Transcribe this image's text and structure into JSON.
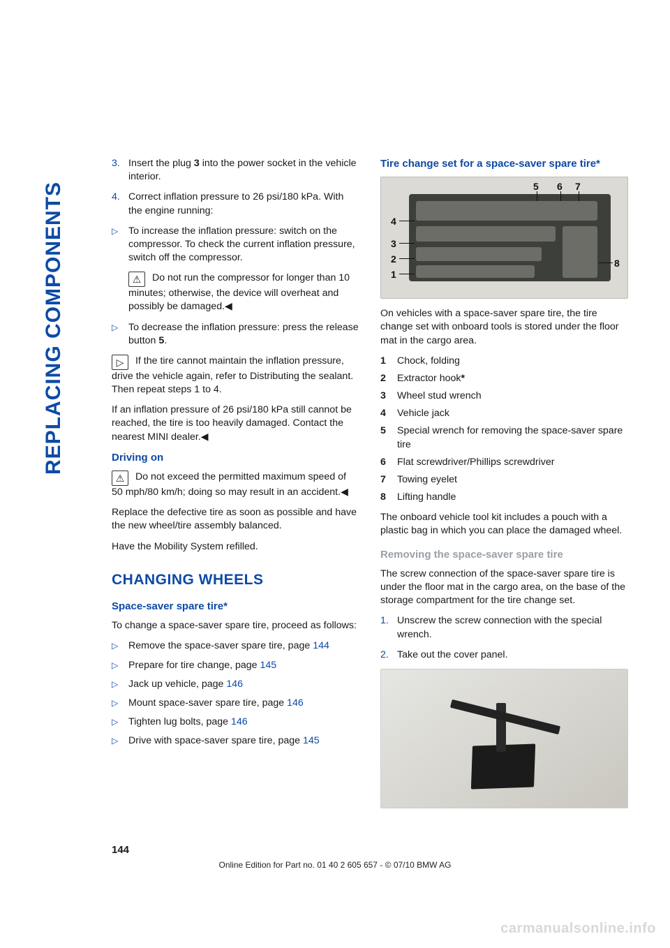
{
  "side_label": "REPLACING COMPONENTS",
  "left": {
    "step3_num": "3.",
    "step3": "Insert the plug <b>3</b> into the power socket in the vehicle interior.",
    "step4_num": "4.",
    "step4": "Correct inflation pressure to 26 psi/180 kPa. With the engine running:",
    "bullet_inc": "To increase the inflation pressure: switch on the compressor. To check the current inflation pressure, switch off the compressor.",
    "warn1": "Do not run the compressor for longer than 10 minutes; otherwise, the device will overheat and possibly be damaged.◀",
    "bullet_dec": "To decrease the inflation pressure: press the release button <b>5</b>.",
    "hint1": "If the tire cannot maintain the inflation pressure, drive the vehicle again, refer to Distributing the sealant. Then repeat steps 1 to 4.",
    "cannot": "If an inflation pressure of 26 psi/180 kPa still cannot be reached, the tire is too heavily damaged. Contact the nearest MINI dealer.◀",
    "driving_h": "Driving on",
    "warn2": "Do not exceed the permitted maximum speed of 50 mph/80 km/h; doing so may result in an accident.◀",
    "replace": "Replace the defective tire as soon as possible and have the new wheel/tire assembly balanced.",
    "refill": "Have the Mobility System refilled.",
    "h_changing": "CHANGING WHEELS",
    "h_space": "Space-saver spare tire*",
    "space_intro": "To change a space-saver spare tire, proceed as follows:",
    "sp_items": [
      {
        "t": "Remove the space-saver spare tire, page ",
        "p": "144"
      },
      {
        "t": "Prepare for tire change, page ",
        "p": "145"
      },
      {
        "t": "Jack up vehicle, page ",
        "p": "146"
      },
      {
        "t": "Mount space-saver spare tire, page ",
        "p": "146"
      },
      {
        "t": "Tighten lug bolts, page ",
        "p": "146"
      },
      {
        "t": "Drive with space-saver spare tire, page ",
        "p": "145"
      }
    ]
  },
  "right": {
    "h_tire_set": "Tire change set for a space-saver spare tire*",
    "diagram_labels": [
      "1",
      "2",
      "3",
      "4",
      "5",
      "6",
      "7",
      "8"
    ],
    "after_diag": "On vehicles with a space-saver spare tire, the tire change set with onboard tools is stored under the floor mat in the cargo area.",
    "items": [
      {
        "n": "1",
        "t": "Chock, folding"
      },
      {
        "n": "2",
        "t": "Extractor hook<b>*</b>"
      },
      {
        "n": "3",
        "t": "Wheel stud wrench"
      },
      {
        "n": "4",
        "t": "Vehicle jack"
      },
      {
        "n": "5",
        "t": "Special wrench for removing the space-saver spare tire"
      },
      {
        "n": "6",
        "t": "Flat screwdriver/Phillips screwdriver"
      },
      {
        "n": "7",
        "t": "Towing eyelet"
      },
      {
        "n": "8",
        "t": "Lifting handle"
      }
    ],
    "pouch": "The onboard vehicle tool kit includes a pouch with a plastic bag in which you can place the damaged wheel.",
    "h_remove": "Removing the space-saver spare tire",
    "remove_p": "The screw connection of the space-saver spare tire is under the floor mat in the cargo area, on the base of the storage compartment for the tire change set.",
    "steps": [
      {
        "n": "1.",
        "t": "Unscrew the screw connection with the special wrench."
      },
      {
        "n": "2.",
        "t": "Take out the cover panel."
      }
    ]
  },
  "page_number": "144",
  "footer": "Online Edition for Part no. 01 40 2 605 657 - © 07/10  BMW AG",
  "watermark": "carmanualsonline.info",
  "colors": {
    "brand": "#0d4aa6",
    "grey_h": "#9aa0a6"
  }
}
